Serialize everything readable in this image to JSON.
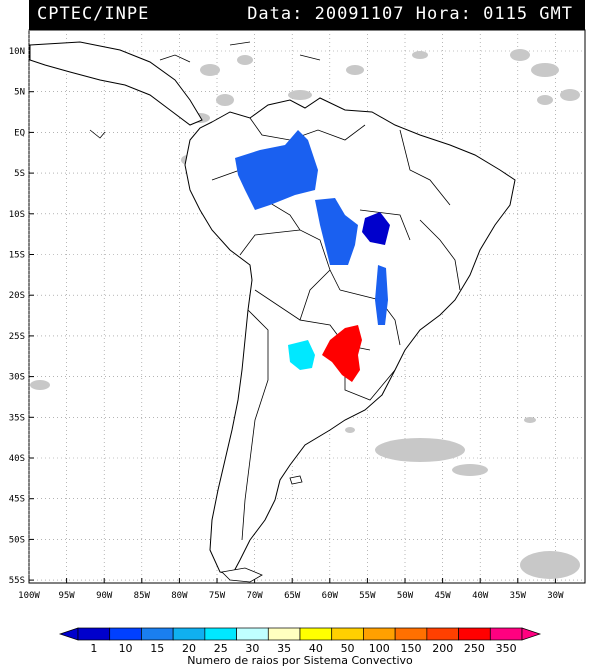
{
  "header": {
    "left": "CPTEC/INPE",
    "right": "Data: 20091107 Hora: 0115 GMT"
  },
  "axes": {
    "lat_labels": [
      "10N",
      "5N",
      "EQ",
      "5S",
      "10S",
      "15S",
      "20S",
      "25S",
      "30S",
      "35S",
      "40S",
      "45S",
      "50S",
      "55S"
    ],
    "lon_labels": [
      "100W",
      "95W",
      "90W",
      "85W",
      "80W",
      "75W",
      "70W",
      "65W",
      "60W",
      "55W",
      "50W",
      "45W",
      "40W",
      "35W",
      "30W"
    ]
  },
  "legend": {
    "title": "Numero de raios por Sistema Convectivo",
    "labels": [
      "1",
      "10",
      "15",
      "20",
      "25",
      "30",
      "35",
      "40",
      "50",
      "100",
      "150",
      "200",
      "250",
      "350"
    ],
    "colors": [
      "#0000cc",
      "#0040ff",
      "#1a7ff0",
      "#10b0f0",
      "#00e8ff",
      "#c0ffff",
      "#ffffc0",
      "#ffff00",
      "#ffd000",
      "#ffa000",
      "#ff7000",
      "#ff4000",
      "#ff0000",
      "#ff0080"
    ]
  },
  "map": {
    "land_color": "#ffffff",
    "border_color": "#000000",
    "cloud_color": "#c8c8c8",
    "systems": [
      {
        "id": "amazon-west",
        "color": "#1a60f0"
      },
      {
        "id": "mato-grosso",
        "color": "#1a60f0"
      },
      {
        "id": "central-east",
        "color": "#0000cc"
      },
      {
        "id": "parana-strip",
        "color": "#1a60f0"
      },
      {
        "id": "paraguay-north",
        "color": "#ff0000"
      },
      {
        "id": "argentina-chaco",
        "color": "#00e8ff"
      }
    ]
  }
}
